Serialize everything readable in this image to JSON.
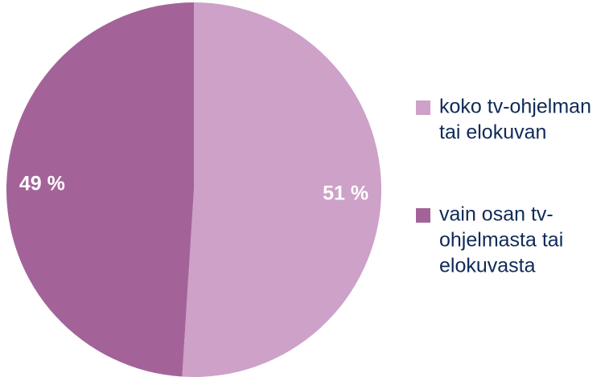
{
  "chart_data": {
    "type": "pie",
    "title": "",
    "legend_position": "right",
    "slices": [
      {
        "label": "koko tv-ohjelman tai elokuvan",
        "value": 51,
        "value_label": "51 %",
        "color": "#cda1c8"
      },
      {
        "label": "vain osan tv-ohjelmasta tai elokuvasta",
        "value": 49,
        "value_label": "49 %",
        "color": "#a36399"
      }
    ],
    "legend": [
      {
        "lines": [
          "koko tv-ohjelman",
          "tai elokuvan"
        ],
        "color": "#cda1c8"
      },
      {
        "lines": [
          "vain osan tv-",
          "ohjelmasta tai",
          "elokuvasta"
        ],
        "color": "#a36399"
      }
    ]
  }
}
